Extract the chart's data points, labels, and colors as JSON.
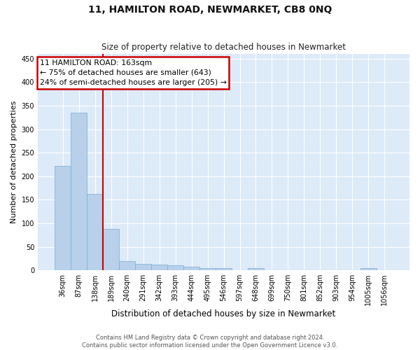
{
  "title": "11, HAMILTON ROAD, NEWMARKET, CB8 0NQ",
  "subtitle": "Size of property relative to detached houses in Newmarket",
  "xlabel": "Distribution of detached houses by size in Newmarket",
  "ylabel": "Number of detached properties",
  "categories": [
    "36sqm",
    "87sqm",
    "138sqm",
    "189sqm",
    "240sqm",
    "291sqm",
    "342sqm",
    "393sqm",
    "444sqm",
    "495sqm",
    "546sqm",
    "597sqm",
    "648sqm",
    "699sqm",
    "750sqm",
    "801sqm",
    "852sqm",
    "903sqm",
    "954sqm",
    "1005sqm",
    "1056sqm"
  ],
  "values": [
    222,
    335,
    163,
    88,
    20,
    14,
    12,
    10,
    8,
    5,
    5,
    0,
    5,
    0,
    0,
    0,
    0,
    0,
    0,
    5,
    0
  ],
  "bar_color": "#b8d0ea",
  "bar_edge_color": "#7aadd4",
  "annotation_text_line1": "11 HAMILTON ROAD: 163sqm",
  "annotation_text_line2": "← 75% of detached houses are smaller (643)",
  "annotation_text_line3": "24% of semi-detached houses are larger (205) →",
  "annotation_box_color": "#ffffff",
  "annotation_box_edge_color": "#cc0000",
  "vline_color": "#cc0000",
  "vline_x_index": 2,
  "ylim": [
    0,
    460
  ],
  "yticks": [
    0,
    50,
    100,
    150,
    200,
    250,
    300,
    350,
    400,
    450
  ],
  "background_color": "#ffffff",
  "plot_bg_color": "#ddeaf8",
  "grid_color": "#ffffff",
  "footer_line1": "Contains HM Land Registry data © Crown copyright and database right 2024.",
  "footer_line2": "Contains public sector information licensed under the Open Government Licence v3.0."
}
